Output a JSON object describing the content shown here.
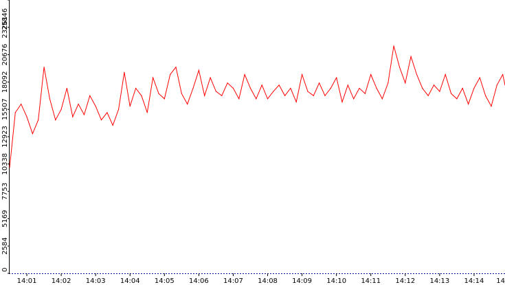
{
  "chart_data": {
    "type": "line",
    "title": "",
    "xlabel": "",
    "ylabel": "",
    "ylim": [
      0,
      25846
    ],
    "xlim_minutes": [
      0.5,
      14.9
    ],
    "y_ticks": [
      0,
      2584,
      5169,
      7753,
      10338,
      12923,
      15507,
      18092,
      20676,
      23261,
      25846
    ],
    "y_tick_labels": [
      "0",
      "2584",
      "5169",
      "7753",
      "10338",
      "12923",
      "15507",
      "18092",
      "20676",
      "23261",
      "25846"
    ],
    "x_ticks": [
      "14:01",
      "14:02",
      "14:03",
      "14:04",
      "14:05",
      "14:06",
      "14:07",
      "14:08",
      "14:09",
      "14:10",
      "14:11",
      "14:12",
      "14:13",
      "14:14",
      "14"
    ],
    "grid": false,
    "legend": "none",
    "series": [
      {
        "color": "#ff0000",
        "x": [
          "14:00:30",
          "14:00:40",
          "14:00:50",
          "14:01:00",
          "14:01:10",
          "14:01:20",
          "14:01:30",
          "14:01:40",
          "14:01:50",
          "14:02:00",
          "14:02:10",
          "14:02:20",
          "14:02:30",
          "14:02:40",
          "14:02:50",
          "14:03:00",
          "14:03:10",
          "14:03:20",
          "14:03:30",
          "14:03:40",
          "14:03:50",
          "14:04:00",
          "14:04:10",
          "14:04:20",
          "14:04:30",
          "14:04:40",
          "14:04:50",
          "14:05:00",
          "14:05:10",
          "14:05:20",
          "14:05:30",
          "14:05:40",
          "14:05:50",
          "14:06:00",
          "14:06:10",
          "14:06:20",
          "14:06:30",
          "14:06:40",
          "14:06:50",
          "14:07:00",
          "14:07:10",
          "14:07:20",
          "14:07:30",
          "14:07:40",
          "14:07:50",
          "14:08:00",
          "14:08:10",
          "14:08:20",
          "14:08:30",
          "14:08:40",
          "14:08:50",
          "14:09:00",
          "14:09:10",
          "14:09:20",
          "14:09:30",
          "14:09:40",
          "14:09:50",
          "14:10:00",
          "14:10:10",
          "14:10:20",
          "14:10:30",
          "14:10:40",
          "14:10:50",
          "14:11:00",
          "14:11:10",
          "14:11:20",
          "14:11:30",
          "14:11:40",
          "14:11:50",
          "14:12:00",
          "14:12:10",
          "14:12:20",
          "14:12:30",
          "14:12:40",
          "14:12:50",
          "14:13:00",
          "14:13:10",
          "14:13:20",
          "14:13:30",
          "14:13:40",
          "14:13:50",
          "14:14:00",
          "14:14:10",
          "14:14:20",
          "14:14:30",
          "14:14:40",
          "14:14:50",
          "14:14:54"
        ],
        "values": [
          10000,
          15200,
          16000,
          14800,
          13200,
          14500,
          19500,
          16500,
          14500,
          15500,
          17500,
          14800,
          16000,
          15000,
          16800,
          15800,
          14500,
          15200,
          14000,
          15500,
          19000,
          15800,
          17500,
          16800,
          15200,
          18500,
          17000,
          16500,
          18800,
          19500,
          17000,
          16000,
          17500,
          19200,
          16800,
          18500,
          17200,
          16800,
          18000,
          17500,
          16500,
          18800,
          17500,
          16500,
          17800,
          16500,
          17200,
          17800,
          16800,
          17500,
          16200,
          18800,
          17200,
          16800,
          18000,
          16800,
          17500,
          18500,
          16200,
          17800,
          16500,
          17500,
          17000,
          18800,
          17500,
          16500,
          18000,
          21500,
          19500,
          18000,
          20500,
          18800,
          17500,
          16800,
          17800,
          17200,
          18800,
          17000,
          16500,
          17500,
          16000,
          17500,
          18500,
          16800,
          15800,
          17800,
          18800,
          17800
        ]
      }
    ]
  }
}
